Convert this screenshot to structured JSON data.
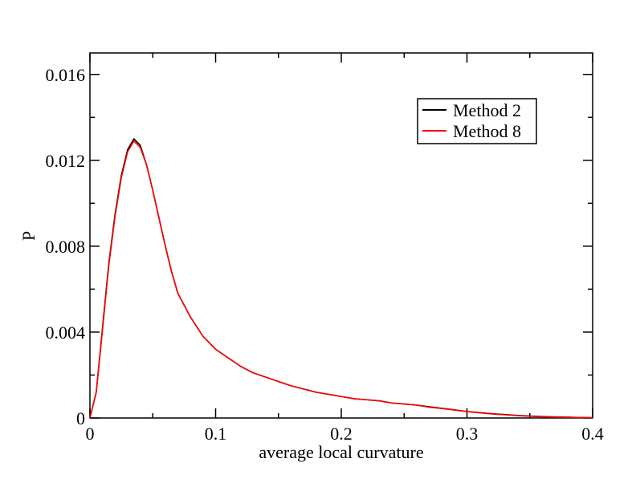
{
  "chart_data": {
    "type": "line",
    "title": "",
    "xlabel": "average local curvature",
    "ylabel": "P",
    "xlim": [
      0,
      0.4
    ],
    "ylim": [
      0,
      0.017
    ],
    "xticks": [
      0,
      0.1,
      0.2,
      0.3,
      0.4
    ],
    "xtick_labels": [
      "0",
      "0.1",
      "0.2",
      "0.3",
      "0.4"
    ],
    "yticks": [
      0,
      0.004,
      0.008,
      0.012,
      0.016
    ],
    "ytick_labels": [
      "0",
      "0.004",
      "0.008",
      "0.012",
      "0.016"
    ],
    "grid": false,
    "legend_position": "top-right",
    "series": [
      {
        "name": "Method 2",
        "color": "#000000",
        "x": [
          0,
          0.005,
          0.01,
          0.015,
          0.02,
          0.025,
          0.03,
          0.035,
          0.04,
          0.045,
          0.05,
          0.055,
          0.06,
          0.065,
          0.07,
          0.08,
          0.09,
          0.1,
          0.11,
          0.12,
          0.13,
          0.14,
          0.15,
          0.16,
          0.17,
          0.18,
          0.19,
          0.2,
          0.21,
          0.22,
          0.23,
          0.24,
          0.25,
          0.26,
          0.27,
          0.28,
          0.29,
          0.3,
          0.31,
          0.32,
          0.33,
          0.34,
          0.35,
          0.36,
          0.37,
          0.38,
          0.39,
          0.4
        ],
        "y": [
          0,
          0.0012,
          0.0042,
          0.0072,
          0.0095,
          0.0113,
          0.0125,
          0.013,
          0.0127,
          0.0118,
          0.0106,
          0.0093,
          0.008,
          0.0068,
          0.0058,
          0.0047,
          0.0038,
          0.0032,
          0.0028,
          0.0024,
          0.0021,
          0.0019,
          0.0017,
          0.0015,
          0.00135,
          0.0012,
          0.0011,
          0.001,
          0.0009,
          0.00085,
          0.0008,
          0.0007,
          0.00065,
          0.0006,
          0.00052,
          0.00045,
          0.00038,
          0.0003,
          0.00025,
          0.0002,
          0.00016,
          0.00012,
          9e-05,
          7e-05,
          5e-05,
          4e-05,
          2e-05,
          1e-05
        ]
      },
      {
        "name": "Method 8",
        "color": "#ff0000",
        "x": [
          0,
          0.005,
          0.01,
          0.015,
          0.02,
          0.025,
          0.03,
          0.035,
          0.04,
          0.045,
          0.05,
          0.055,
          0.06,
          0.065,
          0.07,
          0.08,
          0.09,
          0.1,
          0.11,
          0.12,
          0.13,
          0.14,
          0.15,
          0.16,
          0.17,
          0.18,
          0.19,
          0.2,
          0.21,
          0.22,
          0.23,
          0.24,
          0.25,
          0.26,
          0.27,
          0.28,
          0.29,
          0.3,
          0.31,
          0.32,
          0.33,
          0.34,
          0.35,
          0.36,
          0.37,
          0.38,
          0.39,
          0.4
        ],
        "y": [
          0,
          0.0012,
          0.0041,
          0.0071,
          0.0094,
          0.0112,
          0.0124,
          0.0129,
          0.0126,
          0.0118,
          0.0106,
          0.0093,
          0.008,
          0.0068,
          0.0058,
          0.0047,
          0.0038,
          0.0032,
          0.0028,
          0.0024,
          0.0021,
          0.0019,
          0.0017,
          0.0015,
          0.00135,
          0.0012,
          0.0011,
          0.001,
          0.0009,
          0.00085,
          0.0008,
          0.0007,
          0.00065,
          0.0006,
          0.0005,
          0.00044,
          0.00037,
          0.0003,
          0.00024,
          0.00019,
          0.00015,
          0.00011,
          8e-05,
          6e-05,
          4e-05,
          3e-05,
          2e-05,
          1e-05
        ]
      }
    ]
  }
}
